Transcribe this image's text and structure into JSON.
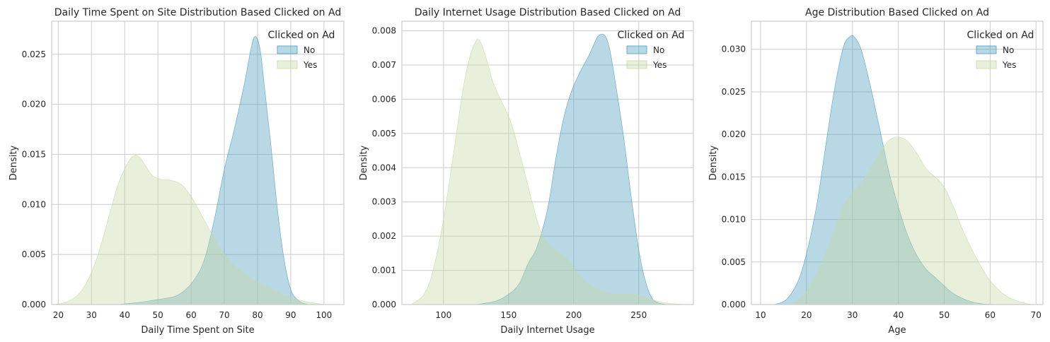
{
  "chart_data": [
    {
      "type": "area",
      "title": "Daily Time Spent on Site Distribution Based Clicked on Ad",
      "xlabel": "Daily Time Spent on Site",
      "ylabel": "Density",
      "xlim": [
        18,
        106
      ],
      "ylim": [
        0,
        0.0283
      ],
      "xticks": [
        20,
        30,
        40,
        50,
        60,
        70,
        80,
        90,
        100
      ],
      "yticks": [
        0,
        0.005,
        0.01,
        0.015,
        0.02,
        0.025
      ],
      "ytick_labels": [
        "0.000",
        "0.005",
        "0.010",
        "0.015",
        "0.020",
        "0.025"
      ],
      "grid": true,
      "legend": {
        "title": "Clicked on Ad",
        "placement": "top-right"
      },
      "series": [
        {
          "name": "No",
          "color": "#4c9ebb",
          "x": [
            38,
            44,
            48,
            52,
            55,
            58,
            61,
            64,
            67,
            70,
            73,
            76,
            78,
            79,
            80,
            81,
            82,
            84,
            86,
            88,
            90,
            92,
            94,
            96
          ],
          "y": [
            0,
            0.0002,
            0.0004,
            0.0006,
            0.0008,
            0.0014,
            0.0025,
            0.0045,
            0.0085,
            0.0135,
            0.0175,
            0.022,
            0.0255,
            0.0267,
            0.0265,
            0.025,
            0.022,
            0.016,
            0.0095,
            0.0045,
            0.0015,
            0.0005,
            0.0001,
            0
          ]
        },
        {
          "name": "Yes",
          "color": "#c5d9a5",
          "x": [
            18,
            22,
            26,
            29,
            32,
            35,
            38,
            41,
            43,
            45,
            48,
            51,
            54,
            57,
            60,
            63,
            66,
            69,
            72,
            75,
            78,
            81,
            84,
            87,
            90,
            93,
            96,
            100
          ],
          "y": [
            0,
            0.0002,
            0.001,
            0.0025,
            0.005,
            0.0085,
            0.012,
            0.0142,
            0.0149,
            0.0145,
            0.013,
            0.0125,
            0.0124,
            0.012,
            0.0108,
            0.009,
            0.0072,
            0.0055,
            0.0042,
            0.0033,
            0.0026,
            0.0021,
            0.0016,
            0.0011,
            0.0007,
            0.0004,
            0.0002,
            0
          ]
        }
      ]
    },
    {
      "type": "area",
      "title": "Daily Internet Usage Distribution Based Clicked on Ad",
      "xlabel": "Daily Internet Usage",
      "ylabel": "Density",
      "xlim": [
        68,
        292
      ],
      "ylim": [
        0,
        0.00828
      ],
      "xticks": [
        100,
        150,
        200,
        250
      ],
      "yticks": [
        0,
        0.001,
        0.002,
        0.003,
        0.004,
        0.005,
        0.006,
        0.007,
        0.008
      ],
      "ytick_labels": [
        "0.000",
        "0.001",
        "0.002",
        "0.003",
        "0.004",
        "0.005",
        "0.006",
        "0.007",
        "0.008"
      ],
      "grid": true,
      "legend": {
        "title": "Clicked on Ad",
        "placement": "top-right"
      },
      "series": [
        {
          "name": "No",
          "color": "#4c9ebb",
          "x": [
            125,
            140,
            150,
            158,
            165,
            172,
            180,
            186,
            192,
            198,
            205,
            212,
            218,
            222,
            225,
            228,
            232,
            238,
            244,
            250,
            255,
            260,
            265,
            270,
            280
          ],
          "y": [
            0,
            0.0001,
            0.0003,
            0.0006,
            0.0012,
            0.0017,
            0.0028,
            0.0042,
            0.0054,
            0.0062,
            0.0068,
            0.0073,
            0.0078,
            0.0079,
            0.0078,
            0.0074,
            0.0065,
            0.005,
            0.0032,
            0.0016,
            0.0007,
            0.0002,
            5e-05,
            1e-05,
            0
          ]
        },
        {
          "name": "Yes",
          "color": "#c5d9a5",
          "x": [
            75,
            85,
            92,
            100,
            108,
            115,
            120,
            125,
            128,
            132,
            138,
            145,
            152,
            160,
            168,
            175,
            182,
            190,
            198,
            205,
            215,
            230,
            240,
            250,
            260,
            270,
            285
          ],
          "y": [
            0,
            0.0003,
            0.001,
            0.0025,
            0.0045,
            0.0063,
            0.0072,
            0.0077,
            0.0077,
            0.0073,
            0.0065,
            0.0059,
            0.0053,
            0.0042,
            0.003,
            0.0021,
            0.0017,
            0.0015,
            0.0012,
            0.0008,
            0.0005,
            0.0003,
            0.0003,
            0.00027,
            0.00015,
            5e-05,
            0
          ]
        }
      ]
    },
    {
      "type": "area",
      "title": "Age Distribution Based Clicked on Ad",
      "xlabel": "Age",
      "ylabel": "Density",
      "xlim": [
        8,
        71.5
      ],
      "ylim": [
        0,
        0.0333
      ],
      "xticks": [
        10,
        20,
        30,
        40,
        50,
        60,
        70
      ],
      "yticks": [
        0,
        0.005,
        0.01,
        0.015,
        0.02,
        0.025,
        0.03
      ],
      "ytick_labels": [
        "0.000",
        "0.005",
        "0.010",
        "0.015",
        "0.020",
        "0.025",
        "0.030"
      ],
      "grid": true,
      "legend": {
        "title": "Clicked on Ad",
        "placement": "top-right"
      },
      "series": [
        {
          "name": "No",
          "color": "#4c9ebb",
          "x": [
            13,
            16,
            19,
            22,
            24,
            26,
            28,
            29.5,
            30.5,
            32,
            34,
            36,
            38,
            40,
            42,
            44,
            46,
            48,
            50,
            52,
            55,
            58,
            62
          ],
          "y": [
            0,
            0.0008,
            0.004,
            0.011,
            0.018,
            0.025,
            0.0302,
            0.0315,
            0.0314,
            0.0298,
            0.0255,
            0.0205,
            0.0155,
            0.0115,
            0.0082,
            0.0058,
            0.0042,
            0.0032,
            0.0022,
            0.0013,
            0.0005,
            0.0001,
            0
          ]
        },
        {
          "name": "Yes",
          "color": "#c5d9a5",
          "x": [
            17,
            20,
            23,
            26,
            28,
            30,
            32,
            34,
            36,
            38,
            40,
            42,
            44,
            46,
            48,
            50,
            52,
            54,
            56,
            58,
            60,
            63,
            66,
            69
          ],
          "y": [
            0,
            0.0015,
            0.0045,
            0.0085,
            0.0115,
            0.0132,
            0.0143,
            0.016,
            0.0178,
            0.0193,
            0.0197,
            0.0192,
            0.0178,
            0.016,
            0.015,
            0.0138,
            0.0115,
            0.0088,
            0.0065,
            0.0045,
            0.0028,
            0.0012,
            0.0004,
            0
          ]
        }
      ]
    }
  ]
}
